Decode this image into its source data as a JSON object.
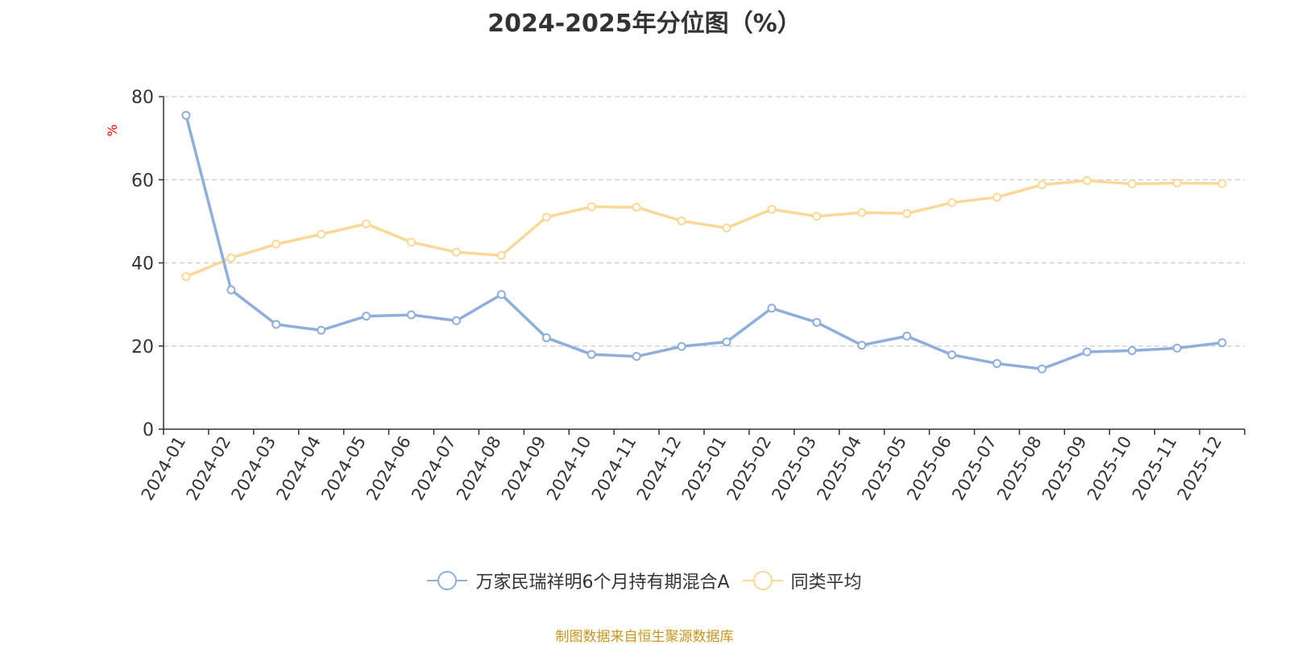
{
  "chart_data": {
    "type": "line",
    "title": "2024-2025年分位图（%）",
    "ylabel": "%",
    "xlabel": "",
    "ylim": [
      0,
      80
    ],
    "yticks": [
      0,
      20,
      40,
      60,
      80
    ],
    "grid": true,
    "legend_position": "bottom",
    "categories": [
      "2024-01",
      "2024-02",
      "2024-03",
      "2024-04",
      "2024-05",
      "2024-06",
      "2024-07",
      "2024-08",
      "2024-09",
      "2024-10",
      "2024-11",
      "2024-12",
      "2025-01",
      "2025-02",
      "2025-03",
      "2025-04",
      "2025-05",
      "2025-06",
      "2025-07",
      "2025-08",
      "2025-09",
      "2025-10",
      "2025-11",
      "2025-12"
    ],
    "series": [
      {
        "name": "万家民瑞祥明6个月持有期混合A",
        "color": "#8eaedb",
        "values": [
          75.5,
          33.5,
          25.2,
          23.8,
          27.2,
          27.5,
          26.1,
          32.4,
          22.0,
          18.0,
          17.5,
          19.9,
          21.0,
          29.1,
          25.7,
          20.2,
          22.4,
          17.9,
          15.8,
          14.5,
          18.6,
          18.9,
          19.5,
          20.8
        ]
      },
      {
        "name": "同类平均",
        "color": "#fad897",
        "values": [
          36.7,
          41.2,
          44.5,
          46.9,
          49.4,
          45.0,
          42.6,
          41.8,
          51.0,
          53.5,
          53.4,
          50.1,
          48.4,
          52.9,
          51.2,
          52.1,
          51.9,
          54.5,
          55.8,
          58.8,
          59.8,
          59.0,
          59.2,
          59.1
        ]
      }
    ],
    "source": "制图数据来自恒生聚源数据库"
  }
}
